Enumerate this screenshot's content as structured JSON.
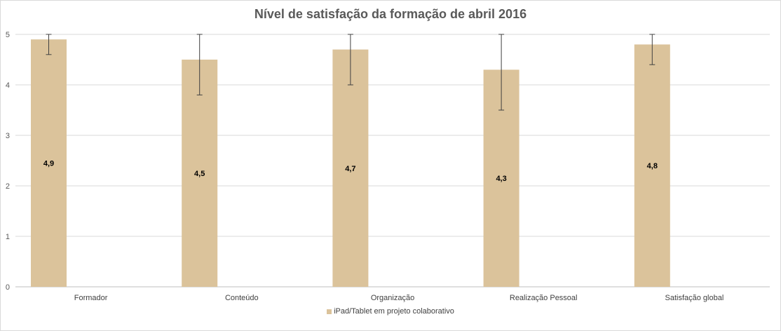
{
  "chart_data": {
    "type": "bar",
    "title": "Nível de satisfação da formação de abril 2016",
    "categories": [
      "Formador",
      "Conteúdo",
      "Organização",
      "Realização Pessoal",
      "Satisfação global"
    ],
    "series": [
      {
        "name": "iPad/Tablet em projeto colaborativo",
        "values": [
          4.9,
          4.5,
          4.7,
          4.3,
          4.8
        ],
        "labels": [
          "4,9",
          "4,5",
          "4,7",
          "4,3",
          "4,8"
        ],
        "error_low": [
          4.6,
          3.8,
          4.0,
          3.5,
          4.4
        ],
        "error_high": [
          5.0,
          5.0,
          5.0,
          5.0,
          5.0
        ],
        "color": "#dbc39b"
      }
    ],
    "ylim": [
      0,
      5
    ],
    "yticks": [
      "0",
      "1",
      "2",
      "3",
      "4",
      "5"
    ],
    "grid": true,
    "legend_position": "bottom"
  }
}
